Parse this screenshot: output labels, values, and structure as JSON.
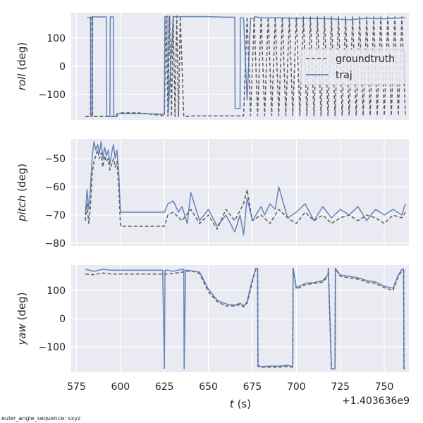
{
  "chart_data": {
    "type": "line",
    "footnote": "euler_angle_sequence: sxyz",
    "xlabel_italic": "t",
    "xlabel_unit": " (s)",
    "x_offset_label": "+1.403636e9",
    "xlim": [
      572,
      764
    ],
    "xticks": [
      575,
      600,
      625,
      650,
      675,
      700,
      725,
      750
    ],
    "xtick_labels": [
      "575",
      "600",
      "625",
      "650",
      "675",
      "700",
      "725",
      "750"
    ],
    "legend": [
      {
        "name": "groundtruth",
        "color": "#555555",
        "dash": "5,3"
      },
      {
        "name": "traj",
        "color": "#4c72b0",
        "dash": ""
      }
    ],
    "panels": [
      {
        "id": "roll",
        "ylabel_italic": "roll",
        "ylabel_unit": " (deg)",
        "ylim": [
          -190,
          190
        ],
        "yticks": [
          -100,
          0,
          100
        ],
        "ytick_labels": [
          "−100",
          "0",
          "100"
        ],
        "series": [
          {
            "name": "groundtruth",
            "color": "#555555",
            "dash": "5,3",
            "x": [
              580,
              583,
              583.2,
              584,
              584.2,
              585,
              586,
              590,
              595,
              597,
              598,
              600,
              610,
              625,
              626,
              627,
              628,
              629,
              630,
              631,
              632,
              633,
              634,
              636,
              638,
              640,
              645,
              650,
              655,
              660,
              665,
              670,
              672,
              674,
              676,
              678,
              680,
              682,
              684,
              686,
              688,
              690,
              692,
              694,
              696,
              698,
              700,
              702,
              704,
              706,
              708,
              710,
              712,
              714,
              716,
              718,
              720,
              722,
              724,
              726,
              728,
              730,
              732,
              734,
              736,
              738,
              740,
              742,
              744,
              746,
              748,
              750,
              752,
              754,
              756,
              758,
              760,
              762
            ],
            "y": [
              -178,
              -178,
              178,
              178,
              -178,
              -178,
              -178,
              -178,
              -178,
              -178,
              -170,
              -165,
              -165,
              -175,
              178,
              -178,
              178,
              -178,
              178,
              -178,
              178,
              -178,
              178,
              -178,
              -178,
              -176,
              -176,
              -176,
              -176,
              -176,
              -176,
              -176,
              175,
              -175,
              175,
              -175,
              175,
              -175,
              175,
              -175,
              175,
              -175,
              175,
              -175,
              175,
              -175,
              175,
              -175,
              175,
              -175,
              175,
              -175,
              175,
              -175,
              175,
              -175,
              175,
              -175,
              175,
              -175,
              175,
              -175,
              175,
              -175,
              175,
              -175,
              175,
              -175,
              175,
              -175,
              175,
              -175,
              175,
              -175,
              175,
              -175,
              175,
              -175
            ]
          },
          {
            "name": "traj",
            "color": "#4c72b0",
            "dash": "",
            "x": [
              581,
              583,
              583.2,
              584,
              584.2,
              586,
              590,
              592,
              592.2,
              594,
              594.2,
              596,
              596.2,
              598,
              598.5,
              600,
              610,
              625,
              625.2,
              627,
              627.2,
              630,
              640,
              650,
              660,
              665,
              665.2,
              668,
              668.2,
              670,
              672,
              674,
              676,
              676.2,
              680,
              690,
              700,
              710,
              720,
              730,
              740,
              750,
              760,
              762
            ],
            "y": [
              172,
              172,
              -178,
              -178,
              175,
              175,
              175,
              175,
              -178,
              -178,
              175,
              175,
              -178,
              -178,
              -168,
              -168,
              -168,
              -170,
              176,
              176,
              -165,
              176,
              176,
              176,
              174,
              174,
              -150,
              -150,
              172,
              172,
              -120,
              170,
              170,
              176,
              172,
              172,
              170,
              170,
              168,
              165,
              170,
              168,
              172,
              172
            ]
          }
        ]
      },
      {
        "id": "pitch",
        "ylabel_italic": "pitch",
        "ylabel_unit": " (deg)",
        "ylim": [
          -81,
          -43
        ],
        "yticks": [
          -80,
          -70,
          -60,
          -50
        ],
        "ytick_labels": [
          "−80",
          "−70",
          "−60",
          "−50"
        ],
        "series": [
          {
            "name": "groundtruth",
            "color": "#555555",
            "dash": "5,3",
            "x": [
              580,
              581,
              582,
              583,
              584,
              585,
              586,
              587,
              588,
              589,
              590,
              591,
              592,
              593,
              594,
              595,
              596,
              597,
              598,
              599,
              600,
              605,
              610,
              615,
              620,
              625,
              627,
              630,
              635,
              640,
              645,
              650,
              655,
              660,
              665,
              670,
              672,
              675,
              680,
              685,
              690,
              695,
              700,
              705,
              710,
              715,
              720,
              725,
              730,
              735,
              740,
              745,
              750,
              755,
              760,
              762
            ],
            "y": [
              -72,
              -66,
              -73,
              -67,
              -55,
              -51,
              -49,
              -47,
              -50,
              -48,
              -53,
              -49,
              -51,
              -50,
              -54,
              -52,
              -50,
              -53,
              -51,
              -60,
              -74,
              -74,
              -74,
              -74,
              -74,
              -74,
              -70,
              -69,
              -72,
              -68,
              -73,
              -70,
              -75,
              -68,
              -72,
              -66,
              -61,
              -72,
              -70,
              -73,
              -68,
              -71,
              -73,
              -69,
              -72,
              -70,
              -73,
              -71,
              -70,
              -72,
              -70,
              -71,
              -73,
              -70,
              -71,
              -69
            ]
          },
          {
            "name": "traj",
            "color": "#4c72b0",
            "dash": "",
            "x": [
              580,
              581,
              582,
              583,
              584,
              585,
              586,
              587,
              588,
              589,
              590,
              591,
              592,
              593,
              594,
              595,
              596,
              597,
              598,
              599,
              600,
              605,
              610,
              615,
              620,
              625,
              627,
              630,
              633,
              635,
              638,
              640,
              645,
              650,
              655,
              660,
              665,
              668,
              670,
              672,
              675,
              680,
              682,
              685,
              688,
              690,
              695,
              700,
              705,
              710,
              715,
              720,
              725,
              730,
              735,
              740,
              745,
              750,
              755,
              760,
              762
            ],
            "y": [
              -70,
              -61,
              -68,
              -60,
              -49,
              -44,
              -47,
              -45,
              -48,
              -44,
              -50,
              -46,
              -49,
              -47,
              -52,
              -48,
              -45,
              -50,
              -47,
              -55,
              -69,
              -69,
              -69,
              -69,
              -69,
              -69,
              -66,
              -65,
              -69,
              -67,
              -73,
              -62,
              -72,
              -68,
              -74,
              -70,
              -76,
              -70,
              -77,
              -64,
              -72,
              -67,
              -70,
              -66,
              -68,
              -60,
              -71,
              -69,
              -66,
              -72,
              -67,
              -71,
              -68,
              -70,
              -67,
              -72,
              -68,
              -70,
              -68,
              -70,
              -66
            ]
          }
        ]
      },
      {
        "id": "yaw",
        "ylabel_italic": "yaw",
        "ylabel_unit": " (deg)",
        "ylim": [
          -190,
          190
        ],
        "yticks": [
          -100,
          0,
          100
        ],
        "ytick_labels": [
          "−100",
          "0",
          "100"
        ],
        "series": [
          {
            "name": "groundtruth",
            "color": "#555555",
            "dash": "5,3",
            "x": [
              580,
              585,
              590,
              595,
              600,
              610,
              625,
              630,
              635,
              640,
              645,
              650,
              655,
              660,
              665,
              668,
              670,
              672,
              674,
              676,
              677,
              678,
              678.2,
              680,
              685,
              690,
              695,
              698,
              698.2,
              700,
              705,
              710,
              715,
              718,
              718.2,
              720,
              722,
              722.2,
              725,
              730,
              735,
              740,
              745,
              750,
              755,
              758,
              760,
              761,
              761.2,
              762
            ],
            "y": [
              158,
              156,
              162,
              158,
              158,
              158,
              158,
              160,
              165,
              170,
              160,
              95,
              60,
              45,
              45,
              50,
              42,
              55,
              105,
              155,
              178,
              178,
              -170,
              -172,
              -172,
              -172,
              -170,
              -172,
              178,
              105,
              120,
              125,
              130,
              150,
              178,
              -178,
              -178,
              178,
              150,
              145,
              140,
              130,
              125,
              110,
              100,
              150,
              170,
              172,
              -178,
              -178
            ]
          },
          {
            "name": "traj",
            "color": "#4c72b0",
            "dash": "",
            "x": [
              580,
              585,
              590,
              595,
              600,
              610,
              624,
              625,
              625.3,
              627,
              630,
              635,
              636,
              636.2,
              637,
              640,
              645,
              650,
              655,
              660,
              665,
              668,
              670,
              672,
              674,
              676,
              677,
              678,
              678.2,
              680,
              685,
              690,
              695,
              698,
              698.2,
              700,
              705,
              710,
              715,
              718,
              718.2,
              720,
              722,
              722.2,
              725,
              730,
              735,
              740,
              745,
              750,
              755,
              758,
              760,
              761,
              761.2,
              762
            ],
            "y": [
              175,
              168,
              175,
              172,
              172,
              172,
              172,
              -178,
              172,
              172,
              168,
              175,
              175,
              -178,
              172,
              170,
              165,
              105,
              65,
              52,
              48,
              55,
              45,
              60,
              115,
              160,
              178,
              178,
              -165,
              -170,
              -168,
              -168,
              -165,
              -170,
              178,
              110,
              125,
              128,
              135,
              155,
              178,
              -178,
              -178,
              178,
              155,
              150,
              145,
              135,
              130,
              115,
              108,
              155,
              175,
              176,
              -178,
              -178
            ]
          }
        ]
      }
    ]
  }
}
